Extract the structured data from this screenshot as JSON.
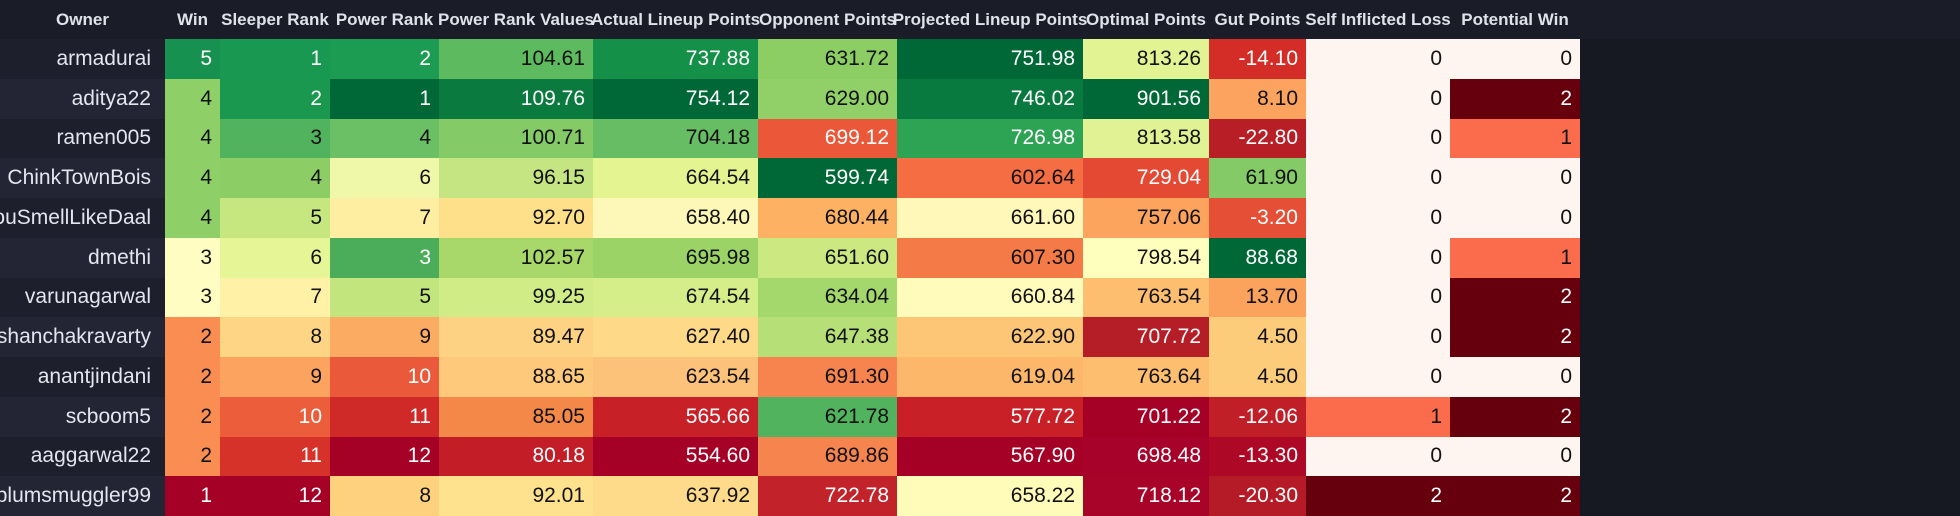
{
  "columns": [
    "Owner",
    "Win",
    "Sleeper Rank",
    "Power Rank",
    "Power Rank Values",
    "Actual Lineup Points",
    "Opponent Points",
    "Projected Lineup Points",
    "Optimal Points",
    "Gut Points",
    "Self Inflicted Loss",
    "Potential Win"
  ],
  "rows": [
    [
      "armadurai",
      "5",
      "1",
      "2",
      "104.61",
      "737.88",
      "631.72",
      "751.98",
      "813.26",
      "-14.10",
      "0",
      "0"
    ],
    [
      "aditya22",
      "4",
      "2",
      "1",
      "109.76",
      "754.12",
      "629.00",
      "746.02",
      "901.56",
      "8.10",
      "0",
      "2"
    ],
    [
      "ramen005",
      "4",
      "3",
      "4",
      "100.71",
      "704.18",
      "699.12",
      "726.98",
      "813.58",
      "-22.80",
      "0",
      "1"
    ],
    [
      "ChinkTownBois",
      "4",
      "4",
      "6",
      "96.15",
      "664.54",
      "599.74",
      "602.64",
      "729.04",
      "61.90",
      "0",
      "0"
    ],
    [
      "YouSmellLikeDaal",
      "4",
      "5",
      "7",
      "92.70",
      "658.40",
      "680.44",
      "661.60",
      "757.06",
      "-3.20",
      "0",
      "0"
    ],
    [
      "dmethi",
      "3",
      "6",
      "3",
      "102.57",
      "695.98",
      "651.60",
      "607.30",
      "798.54",
      "88.68",
      "0",
      "1"
    ],
    [
      "varunagarwal",
      "3",
      "7",
      "5",
      "99.25",
      "674.54",
      "634.04",
      "660.84",
      "763.54",
      "13.70",
      "0",
      "2"
    ],
    [
      "ishanchakravarty",
      "2",
      "8",
      "9",
      "89.47",
      "627.40",
      "647.38",
      "622.90",
      "707.72",
      "4.50",
      "0",
      "2"
    ],
    [
      "anantjindani",
      "2",
      "9",
      "10",
      "88.65",
      "623.54",
      "691.30",
      "619.04",
      "763.64",
      "4.50",
      "0",
      "0"
    ],
    [
      "scboom5",
      "2",
      "10",
      "11",
      "85.05",
      "565.66",
      "621.78",
      "577.72",
      "701.22",
      "-12.06",
      "1",
      "2"
    ],
    [
      "aaggarwal22",
      "2",
      "11",
      "12",
      "80.18",
      "554.60",
      "689.86",
      "567.90",
      "698.48",
      "-13.30",
      "0",
      "0"
    ],
    [
      "plumsmuggler99",
      "1",
      "12",
      "8",
      "92.01",
      "637.92",
      "722.78",
      "658.22",
      "718.12",
      "-20.30",
      "2",
      "2"
    ]
  ],
  "colors": [
    [
      null,
      "#17914f",
      "#199851",
      "#1c9c52",
      "#5eba5f",
      "#159049",
      "#8cce64",
      "#006837",
      "#e2f393",
      "#d42c27",
      "#fff5f0",
      "#fff5f0"
    ],
    [
      null,
      "#8ecf67",
      "#1a9850",
      "#006837",
      "#0a7a3f",
      "#006837",
      "#91d068",
      "#087a3f",
      "#006837",
      "#fca45f",
      "#fff5f0",
      "#67000d"
    ],
    [
      null,
      "#8ecf67",
      "#51b35e",
      "#6bbf64",
      "#84ca67",
      "#66bd63",
      "#ea5739",
      "#2da354",
      "#e0f294",
      "#b81e26",
      "#fff5f0",
      "#fb6c4c"
    ],
    [
      null,
      "#8ecf67",
      "#8ccd65",
      "#eef8a8",
      "#c5e583",
      "#e4f491",
      "#006837",
      "#f46d43",
      "#e34933",
      "#84ca66",
      "#fff5f0",
      "#fff5f0"
    ],
    [
      null,
      "#8ecf67",
      "#c6e77f",
      "#feeea2",
      "#fee08b",
      "#fdf8b7",
      "#fdb163",
      "#fff8b8",
      "#fca35e",
      "#e54f35",
      "#fff5f0",
      "#fff5f0"
    ],
    [
      null,
      "#fffdc2",
      "#e6f595",
      "#4bad5a",
      "#a8d869",
      "#9bd367",
      "#cbe881",
      "#f47a47",
      "#feffbc",
      "#006837",
      "#fff5f0",
      "#fb6c4c"
    ],
    [
      null,
      "#fffdc2",
      "#fff1a6",
      "#c3e57d",
      "#d0ec86",
      "#d6ee8a",
      "#a5d86c",
      "#fffcbb",
      "#fdbf6f",
      "#fba35d",
      "#fff5f0",
      "#67000d"
    ],
    [
      null,
      "#f98d52",
      "#fed585",
      "#fcac62",
      "#fed283",
      "#fed987",
      "#b6df77",
      "#fdc676",
      "#b51e27",
      "#fdcc7b",
      "#fff5f0",
      "#67000d"
    ],
    [
      null,
      "#f98d52",
      "#fca45f",
      "#e9593a",
      "#fec97a",
      "#fdc27a",
      "#f7844e",
      "#fdb76a",
      "#fdbf6f",
      "#fdcc7b",
      "#fff5f0",
      "#fff5f0"
    ],
    [
      null,
      "#f98d52",
      "#ec5d3c",
      "#d02a28",
      "#f38849",
      "#c82027",
      "#52b35f",
      "#c92027",
      "#a50026",
      "#c01f27",
      "#fb6c4c",
      "#67000d"
    ],
    [
      null,
      "#f98d52",
      "#d6322a",
      "#a50026",
      "#c31e27",
      "#a50026",
      "#f6844f",
      "#a50026",
      "#a6022a",
      "#ad0826",
      "#fff5f0",
      "#fff5f0"
    ],
    [
      null,
      "#a50026",
      "#a50026",
      "#fed17f",
      "#fee28d",
      "#fedb8b",
      "#c2232a",
      "#fffbb9",
      "#a8042a",
      "#b51b26",
      "#67000d",
      "#67000d"
    ]
  ]
}
